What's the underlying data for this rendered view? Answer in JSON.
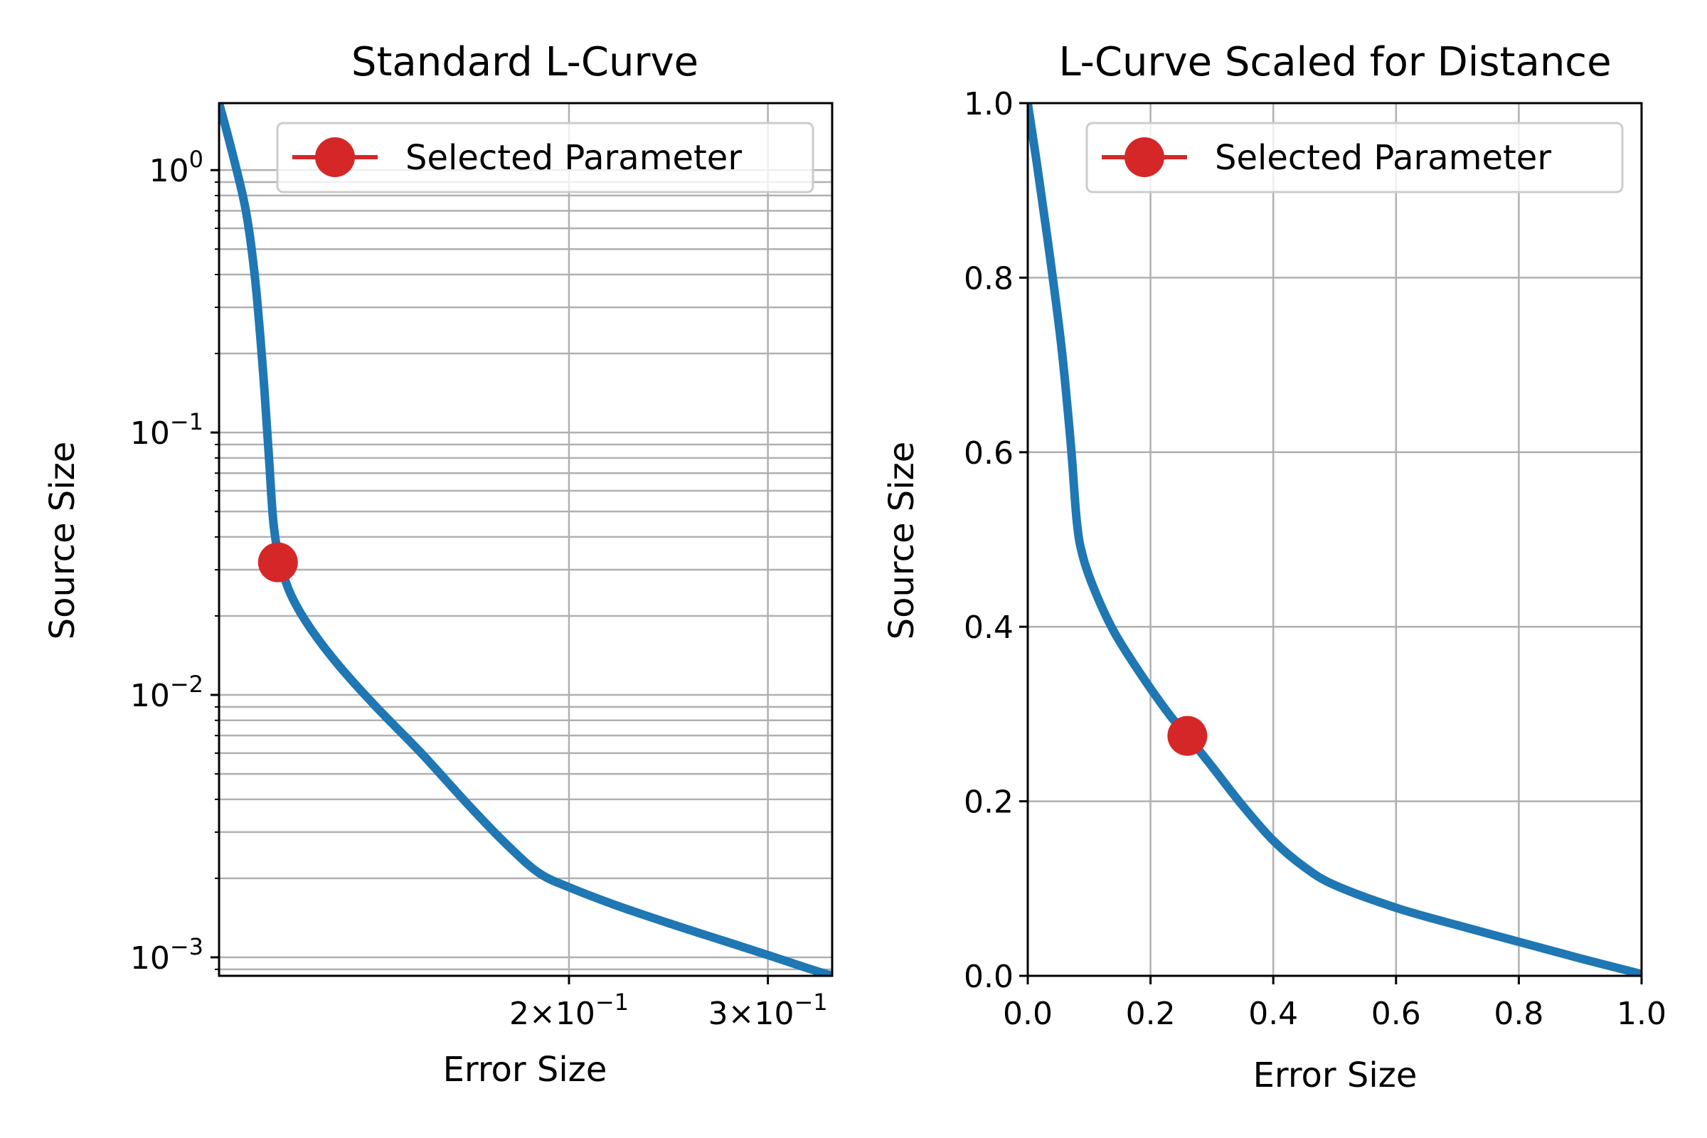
{
  "chart_data": [
    {
      "type": "line",
      "title": "Standard L-Curve",
      "xlabel": "Error Size",
      "ylabel": "Source Size",
      "xscale": "log",
      "yscale": "log",
      "xlim": [
        0.098,
        0.342
      ],
      "ylim": [
        0.00085,
        1.8
      ],
      "grid": true,
      "legend_loc": "upper right",
      "x_ticks": [
        {
          "value": 0.2,
          "mantissa": "2",
          "exp": "−1"
        },
        {
          "value": 0.3,
          "mantissa": "3",
          "exp": "−1"
        }
      ],
      "y_ticks": [
        {
          "value": 1,
          "base": "10",
          "exp": "0"
        },
        {
          "value": 0.1,
          "base": "10",
          "exp": "−1"
        },
        {
          "value": 0.01,
          "base": "10",
          "exp": "−2"
        },
        {
          "value": 0.001,
          "base": "10",
          "exp": "−3"
        }
      ],
      "series": [
        {
          "color": "#1f77b4",
          "points": [
            [
              0.098,
              1.8
            ],
            [
              0.1005,
              1.2
            ],
            [
              0.1035,
              0.7
            ],
            [
              0.1055,
              0.38
            ],
            [
              0.1072,
              0.17
            ],
            [
              0.1085,
              0.08
            ],
            [
              0.1095,
              0.045
            ],
            [
              0.111,
              0.032
            ],
            [
              0.1135,
              0.024
            ],
            [
              0.118,
              0.018
            ],
            [
              0.125,
              0.013
            ],
            [
              0.135,
              0.009
            ],
            [
              0.148,
              0.006
            ],
            [
              0.163,
              0.0038
            ],
            [
              0.176,
              0.0027
            ],
            [
              0.188,
              0.0021
            ],
            [
              0.2,
              0.00185
            ],
            [
              0.22,
              0.00158
            ],
            [
              0.245,
              0.00135
            ],
            [
              0.27,
              0.00118
            ],
            [
              0.3,
              0.00102
            ],
            [
              0.325,
              0.00091
            ],
            [
              0.342,
              0.00085
            ]
          ]
        }
      ],
      "selected": {
        "name": "Selected Parameter",
        "x": 0.1105,
        "y": 0.032,
        "color": "#d62728"
      }
    },
    {
      "type": "line",
      "title": "L-Curve Scaled for Distance",
      "xlabel": "Error Size",
      "ylabel": "Source Size",
      "xlim": [
        0,
        1
      ],
      "ylim": [
        0,
        1
      ],
      "grid": true,
      "legend_loc": "upper right",
      "x_ticks": [
        "0.0",
        "0.2",
        "0.4",
        "0.6",
        "0.8",
        "1.0"
      ],
      "y_ticks": [
        "0.0",
        "0.2",
        "0.4",
        "0.6",
        "0.8",
        "1.0"
      ],
      "series": [
        {
          "color": "#1f77b4",
          "points": [
            [
              0.0,
              1.0
            ],
            [
              0.015,
              0.93
            ],
            [
              0.035,
              0.83
            ],
            [
              0.055,
              0.72
            ],
            [
              0.07,
              0.61
            ],
            [
              0.08,
              0.52
            ],
            [
              0.09,
              0.48
            ],
            [
              0.11,
              0.44
            ],
            [
              0.14,
              0.395
            ],
            [
              0.18,
              0.35
            ],
            [
              0.23,
              0.3
            ],
            [
              0.26,
              0.275
            ],
            [
              0.3,
              0.24
            ],
            [
              0.35,
              0.195
            ],
            [
              0.4,
              0.155
            ],
            [
              0.45,
              0.125
            ],
            [
              0.5,
              0.104
            ],
            [
              0.6,
              0.078
            ],
            [
              0.7,
              0.058
            ],
            [
              0.8,
              0.039
            ],
            [
              0.9,
              0.02
            ],
            [
              1.0,
              0.002
            ]
          ]
        }
      ],
      "selected": {
        "name": "Selected Parameter",
        "x": 0.26,
        "y": 0.275,
        "color": "#d62728"
      }
    }
  ]
}
